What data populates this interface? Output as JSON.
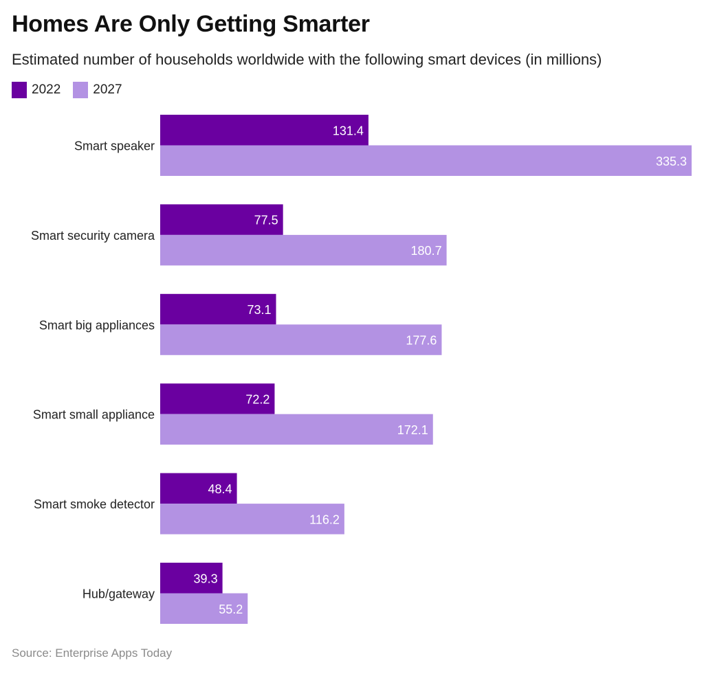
{
  "title": "Homes Are Only Getting Smarter",
  "subtitle": "Estimated number of households worldwide with the following smart devices (in millions)",
  "source": "Source: Enterprise Apps Today",
  "colors": {
    "2022": "#6a00a0",
    "2027": "#b392e3",
    "category_text": "#222222",
    "value_text": "#ffffff"
  },
  "chart_data": {
    "type": "bar",
    "orientation": "horizontal",
    "categories": [
      "Smart speaker",
      "Smart security camera",
      "Smart big appliances",
      "Smart small appliance",
      "Smart smoke detector",
      "Hub/gateway"
    ],
    "series": [
      {
        "name": "2022",
        "values": [
          131.4,
          77.5,
          73.1,
          72.2,
          48.4,
          39.3
        ]
      },
      {
        "name": "2027",
        "values": [
          335.3,
          180.7,
          177.6,
          172.1,
          116.2,
          55.2
        ]
      }
    ],
    "xlim": [
      0,
      335.3
    ],
    "grid": false,
    "legend_position": "top-left",
    "data_labels": true
  }
}
